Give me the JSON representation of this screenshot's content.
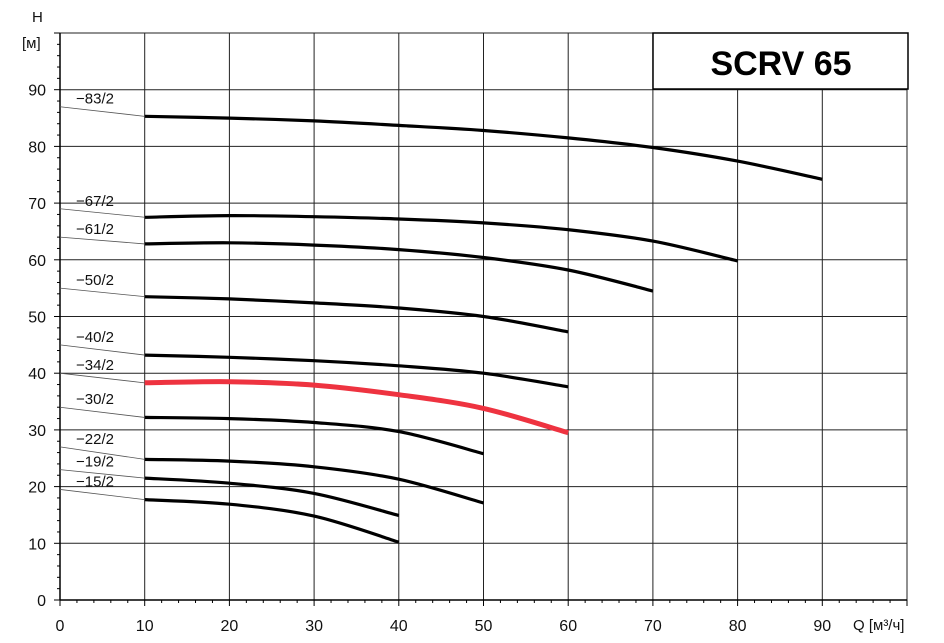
{
  "chart_data": {
    "type": "line",
    "title": "SCRV 65",
    "ylabel": "H",
    "yunit": "[м]",
    "xlabel": "Q [м³/ч]",
    "xlim": [
      0,
      100
    ],
    "ylim": [
      0,
      100
    ],
    "xticks": [
      0,
      10,
      20,
      30,
      40,
      50,
      60,
      70,
      80,
      90
    ],
    "yticks": [
      0,
      10,
      20,
      30,
      40,
      50,
      60,
      70,
      80,
      90
    ],
    "grid": true,
    "highlight_color": "#ee3340",
    "line_color": "#000000",
    "series": [
      {
        "name": "−83/2",
        "label_y": 87,
        "x": [
          10,
          20,
          30,
          40,
          50,
          60,
          70,
          80,
          90
        ],
        "y": [
          85.3,
          85.0,
          84.5,
          83.7,
          82.8,
          81.5,
          79.8,
          77.4,
          74.2
        ]
      },
      {
        "name": "−67/2",
        "label_y": 69,
        "x": [
          10,
          20,
          30,
          40,
          50,
          60,
          70,
          80
        ],
        "y": [
          67.5,
          67.8,
          67.6,
          67.2,
          66.5,
          65.3,
          63.3,
          59.8
        ]
      },
      {
        "name": "−61/2",
        "label_y": 64,
        "x": [
          10,
          20,
          30,
          40,
          50,
          60,
          70
        ],
        "y": [
          62.8,
          63.0,
          62.6,
          61.8,
          60.4,
          58.2,
          54.5
        ]
      },
      {
        "name": "−50/2",
        "label_y": 55,
        "x": [
          10,
          20,
          30,
          40,
          50,
          60
        ],
        "y": [
          53.5,
          53.1,
          52.4,
          51.5,
          50.0,
          47.3
        ]
      },
      {
        "name": "−40/2",
        "label_y": 45,
        "x": [
          10,
          20,
          30,
          40,
          50,
          60
        ],
        "y": [
          43.2,
          42.8,
          42.2,
          41.3,
          40.0,
          37.6
        ]
      },
      {
        "name": "−34/2",
        "label_y": 40,
        "highlight": true,
        "x": [
          10,
          20,
          30,
          40,
          50,
          60
        ],
        "y": [
          38.3,
          38.5,
          37.9,
          36.2,
          33.8,
          29.5
        ]
      },
      {
        "name": "−30/2",
        "label_y": 34,
        "x": [
          10,
          20,
          30,
          40,
          50
        ],
        "y": [
          32.2,
          32.0,
          31.3,
          29.7,
          25.8
        ]
      },
      {
        "name": "−22/2",
        "label_y": 27,
        "x": [
          10,
          20,
          30,
          40,
          50
        ],
        "y": [
          24.8,
          24.5,
          23.5,
          21.3,
          17.1
        ]
      },
      {
        "name": "−19/2",
        "label_y": 23,
        "x": [
          10,
          20,
          30,
          40
        ],
        "y": [
          21.5,
          20.6,
          18.8,
          14.9
        ]
      },
      {
        "name": "−15/2",
        "label_y": 19.5,
        "x": [
          10,
          20,
          30,
          40
        ],
        "y": [
          17.7,
          16.9,
          14.8,
          10.2
        ]
      }
    ]
  }
}
